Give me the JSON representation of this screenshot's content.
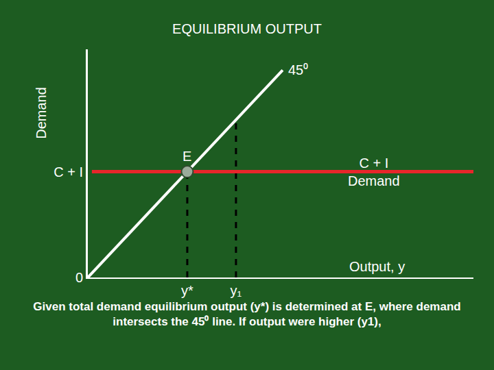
{
  "chart_data": {
    "type": "line",
    "title": "EQUILIBRIUM OUTPUT",
    "x_label": "Output, y",
    "y_label": "Demand",
    "caption": "Given total demand equilibrium output (y*) is determined at E, where demand intersects the 45⁰ line. If output were higher (y1),",
    "xlim": [
      0,
      19
    ],
    "ylim": [
      0,
      11
    ],
    "xticks": [
      {
        "value": 4.9,
        "label": "y*"
      },
      {
        "value": 7.3,
        "label": "y₁"
      }
    ],
    "yticks": [
      0,
      {
        "value": 5.1,
        "label": "C + I"
      }
    ],
    "grid": false,
    "series": [
      {
        "color": "#000000",
        "line_style": "dashed",
        "x": [
          4.9,
          4.9
        ],
        "y": [
          0,
          5.1
        ]
      },
      {
        "color": "#000000",
        "line_style": "dashed",
        "x": [
          7.3,
          7.3
        ],
        "y": [
          0,
          7.6
        ]
      },
      {
        "name": "45⁰",
        "color": "#ffffff",
        "line_style": "solid",
        "x": [
          0,
          9.6
        ],
        "y": [
          0,
          10
        ]
      },
      {
        "name": "C + I\nDemand",
        "color": "#e8262b",
        "line_style": "solid",
        "x": [
          0.2,
          19
        ],
        "y": [
          5.1,
          5.1
        ]
      },
      {
        "name": "E",
        "type": "scatter",
        "marker": "circle",
        "color": "#9aab9a",
        "x": [
          4.9
        ],
        "y": [
          5.1
        ]
      }
    ]
  }
}
